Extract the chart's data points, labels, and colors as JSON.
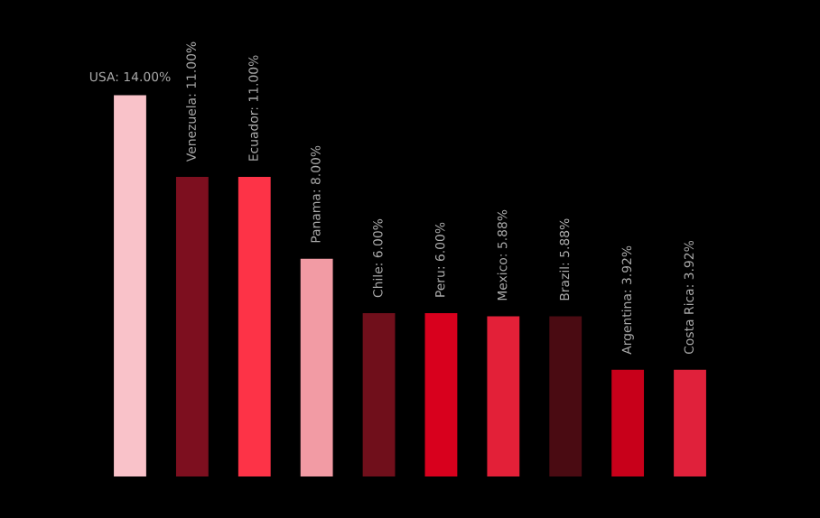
{
  "chart_data": {
    "type": "bar",
    "categories": [
      null,
      null,
      null,
      null,
      null,
      null,
      null,
      null,
      null,
      null
    ],
    "values": [
      14.0,
      11.0,
      11.0,
      8.0,
      6.0,
      6.0,
      5.88,
      5.88,
      3.92,
      3.92
    ],
    "colors": [
      "#f9c2c9",
      "#7d0f1f",
      "#fd3347",
      "#f29ba4",
      "#700f1b",
      "#d8001d",
      "#e32038",
      "#4a0b12",
      "#c8001a",
      "#e0213b"
    ],
    "value_labels": [
      "USA: 14.00%",
      "Venezuela: 11.00%",
      "Ecuador: 11.00%",
      "Panama: 8.00%",
      "Chile: 6.00%",
      "Peru: 6.00%",
      "Mexico: 5.88%",
      "Brazil: 5.88%",
      "Argentina: 3.92%",
      "Costa Rica: 3.92%"
    ],
    "legend": false
  }
}
